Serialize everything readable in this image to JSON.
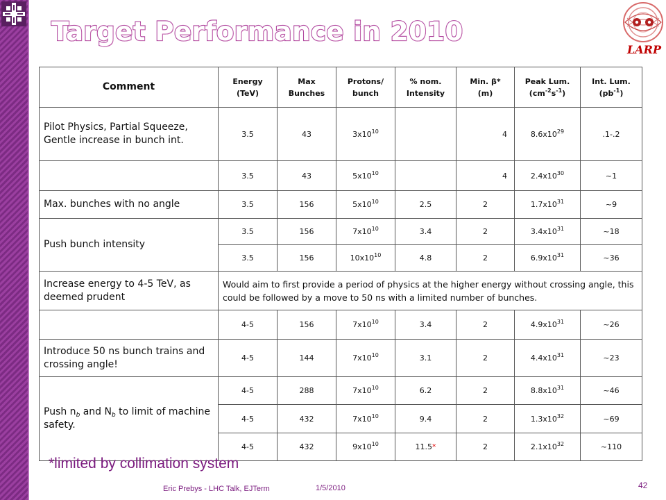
{
  "slide": {
    "title": "Target Performance in 2010",
    "larp_label": "LARP",
    "footnote": "*limited by collimation system",
    "footer_author": "Eric Prebys - LHC Talk, EJTerm",
    "footer_date": "1/5/2010",
    "page_number": "42"
  },
  "colors": {
    "accent": "#9b3fa0",
    "title_outline": "#b0479f",
    "footnote": "#7a1a7e",
    "star": "#e00000"
  },
  "icons": [
    "fermilab-logo",
    "larp-logo"
  ],
  "table": {
    "headers": {
      "comment": "Comment",
      "energy_1": "Energy",
      "energy_2": "(TeV)",
      "bunches_1": "Max",
      "bunches_2": "Bunches",
      "protons_1": "Protons/",
      "protons_2": "bunch",
      "intensity_1": "% nom.",
      "intensity_2": "Intensity",
      "beta_1": "Min. β*",
      "beta_2": "(m)",
      "peak_1": "Peak Lum.",
      "peak_2": "(cm",
      "peak_2_sup": "-2",
      "peak_2_mid": "s",
      "peak_2_sup2": "-1",
      "peak_2_end": ")",
      "int_1": "Int. Lum.",
      "int_2": "(pb",
      "int_2_sup": "-1",
      "int_2_end": ")"
    },
    "rows": [
      {
        "comment": "Pilot Physics, Partial Squeeze, Gentle increase in bunch int.",
        "energy": "3.5",
        "bunches": "43",
        "protons_base": "3x10",
        "protons_exp": "10",
        "intensity": "",
        "beta": "4",
        "peak_base": "8.6x10",
        "peak_exp": "29",
        "int_lum": ".1-.2"
      },
      {
        "comment": "",
        "energy": "3.5",
        "bunches": "43",
        "protons_base": "5x10",
        "protons_exp": "10",
        "intensity": "",
        "beta": "4",
        "peak_base": "2.4x10",
        "peak_exp": "30",
        "int_lum": "~1"
      },
      {
        "comment": "Max. bunches with no angle",
        "energy": "3.5",
        "bunches": "156",
        "protons_base": "5x10",
        "protons_exp": "10",
        "intensity": "2.5",
        "beta": "2",
        "peak_base": "1.7x10",
        "peak_exp": "31",
        "int_lum": "~9"
      },
      {
        "comment": "Push bunch intensity",
        "energy": "3.5",
        "bunches": "156",
        "protons_base": "7x10",
        "protons_exp": "10",
        "intensity": "3.4",
        "beta": "2",
        "peak_base": "3.4x10",
        "peak_exp": "31",
        "int_lum": "~18"
      },
      {
        "comment": "",
        "energy": "3.5",
        "bunches": "156",
        "protons_base": "10x10",
        "protons_exp": "10",
        "intensity": "4.8",
        "beta": "2",
        "peak_base": "6.9x10",
        "peak_exp": "31",
        "int_lum": "~36"
      },
      {
        "comment": "Increase energy to 4-5 TeV, as deemed prudent",
        "note": "Would aim to first provide a period of physics at the higher energy without crossing angle, this could be followed by a move to 50 ns with a limited number of bunches."
      },
      {
        "comment": "",
        "energy": "4-5",
        "bunches": "156",
        "protons_base": "7x10",
        "protons_exp": "10",
        "intensity": "3.4",
        "beta": "2",
        "peak_base": "4.9x10",
        "peak_exp": "31",
        "int_lum": "~26"
      },
      {
        "comment": "Introduce 50 ns bunch trains and crossing angle!",
        "energy": "4-5",
        "bunches": "144",
        "protons_base": "7x10",
        "protons_exp": "10",
        "intensity": "3.1",
        "beta": "2",
        "peak_base": "4.4x10",
        "peak_exp": "31",
        "int_lum": "~23"
      },
      {
        "comment_pre": "Push n",
        "comment_sub1": "b",
        "comment_mid": " and N",
        "comment_sub2": "b",
        "comment_post": " to limit of machine safety.",
        "energy": "4-5",
        "bunches": "288",
        "protons_base": "7x10",
        "protons_exp": "10",
        "intensity": "6.2",
        "beta": "2",
        "peak_base": "8.8x10",
        "peak_exp": "31",
        "int_lum": "~46"
      },
      {
        "energy": "4-5",
        "bunches": "432",
        "protons_base": "7x10",
        "protons_exp": "10",
        "intensity": "9.4",
        "beta": "2",
        "peak_base": "1.3x10",
        "peak_exp": "32",
        "int_lum": "~69"
      },
      {
        "energy": "4-5",
        "bunches": "432",
        "protons_base": "9x10",
        "protons_exp": "10",
        "intensity": "11.5",
        "intensity_mark": "*",
        "beta": "2",
        "peak_base": "2.1x10",
        "peak_exp": "32",
        "int_lum": "~110"
      }
    ]
  }
}
